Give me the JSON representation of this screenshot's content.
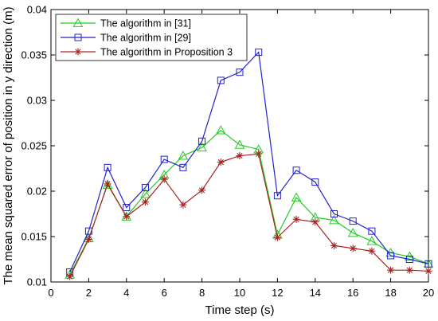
{
  "chart_data": {
    "type": "line",
    "xlabel": "Time step (s)",
    "ylabel": "The mean squared error of position in y direction  (m)",
    "xlim": [
      0,
      20
    ],
    "ylim": [
      0.01,
      0.04
    ],
    "xticks": [
      0,
      2,
      4,
      6,
      8,
      10,
      12,
      14,
      16,
      18,
      20
    ],
    "yticks": [
      0.01,
      0.015,
      0.02,
      0.025,
      0.03,
      0.035,
      0.04
    ],
    "ytick_labels": [
      "0.01",
      "0.015",
      "0.02",
      "0.025",
      "0.03",
      "0.035",
      "0.04"
    ],
    "legend_position": "top-left",
    "x": [
      1,
      2,
      3,
      4,
      5,
      6,
      7,
      8,
      9,
      10,
      11,
      12,
      13,
      14,
      15,
      16,
      17,
      18,
      19,
      20
    ],
    "series": [
      {
        "name": "The algorithm in [31]",
        "color": "#22cc22",
        "marker": "triangle",
        "values": [
          0.0108,
          0.0148,
          0.0207,
          0.0172,
          0.0197,
          0.0218,
          0.0239,
          0.0248,
          0.0267,
          0.0251,
          0.0246,
          0.0152,
          0.0193,
          0.0171,
          0.0168,
          0.0154,
          0.0145,
          0.0132,
          0.0128,
          0.012
        ]
      },
      {
        "name": "The algorithm in [29]",
        "color": "#2222cc",
        "marker": "square",
        "values": [
          0.0111,
          0.0156,
          0.0226,
          0.0182,
          0.0204,
          0.0235,
          0.0226,
          0.0255,
          0.0322,
          0.0331,
          0.0353,
          0.0195,
          0.0223,
          0.021,
          0.0175,
          0.0167,
          0.0156,
          0.0129,
          0.0125,
          0.012
        ]
      },
      {
        "name": "The algorithm in Proposition 3",
        "color": "#aa2222",
        "marker": "star",
        "values": [
          0.0106,
          0.0147,
          0.0208,
          0.0172,
          0.0188,
          0.0213,
          0.0185,
          0.0201,
          0.0232,
          0.0239,
          0.0241,
          0.0149,
          0.0169,
          0.0166,
          0.014,
          0.0137,
          0.0134,
          0.0113,
          0.0113,
          0.0112
        ]
      }
    ]
  }
}
